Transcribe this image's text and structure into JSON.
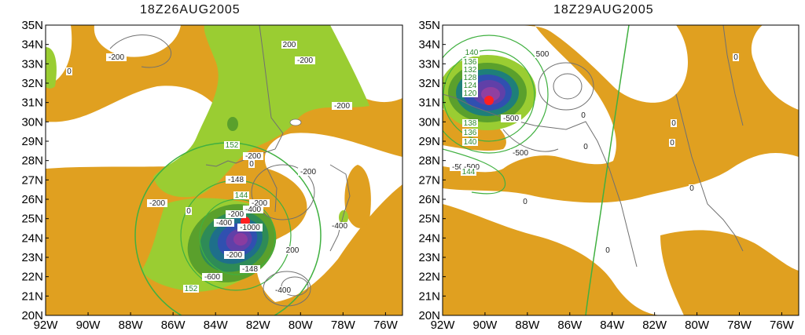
{
  "panels": [
    {
      "title": "18Z26AUG2005",
      "lat_labels": [
        "35N",
        "34N",
        "33N",
        "32N",
        "31N",
        "30N",
        "29N",
        "28N",
        "27N",
        "26N",
        "25N",
        "24N",
        "23N",
        "22N",
        "21N",
        "20N"
      ],
      "lon_labels": [
        "92W",
        "90W",
        "88W",
        "86W",
        "84W",
        "82W",
        "80W",
        "78W",
        "76W"
      ],
      "contour_labels": [
        "-200",
        "200",
        "0",
        "-200",
        "-200",
        "-200",
        "0",
        "-200",
        "0",
        "152",
        "-200",
        "-148",
        "144",
        "-200",
        "-400",
        "-200",
        "-400",
        "-1000",
        "-200",
        "-148",
        "-600",
        "200",
        "-400",
        "152",
        "-400"
      ]
    },
    {
      "title": "18Z29AUG2005",
      "lat_labels": [
        "35N",
        "34N",
        "33N",
        "32N",
        "31N",
        "30N",
        "29N",
        "28N",
        "27N",
        "26N",
        "25N",
        "24N",
        "23N",
        "22N",
        "21N",
        "20N"
      ],
      "lon_labels": [
        "92W",
        "90W",
        "88W",
        "86W",
        "84W",
        "82W",
        "80W",
        "78W",
        "76W"
      ],
      "contour_labels": [
        "140",
        "136",
        "132",
        "128",
        "124",
        "120",
        "500",
        "-500",
        "-500",
        "0",
        "138",
        "136",
        "140",
        "-500",
        "-500",
        "144",
        "0",
        "0",
        "0",
        "0",
        "0",
        "0",
        "0"
      ]
    }
  ],
  "colors": {
    "orange": "#e0a020",
    "green": "#9acd32",
    "dark_green": "#5aa02c",
    "blue": "#3050b0",
    "purple": "#8040a0",
    "marker": "#ff2020",
    "contour_green": "#40b040",
    "contour_gray": "#707070"
  }
}
